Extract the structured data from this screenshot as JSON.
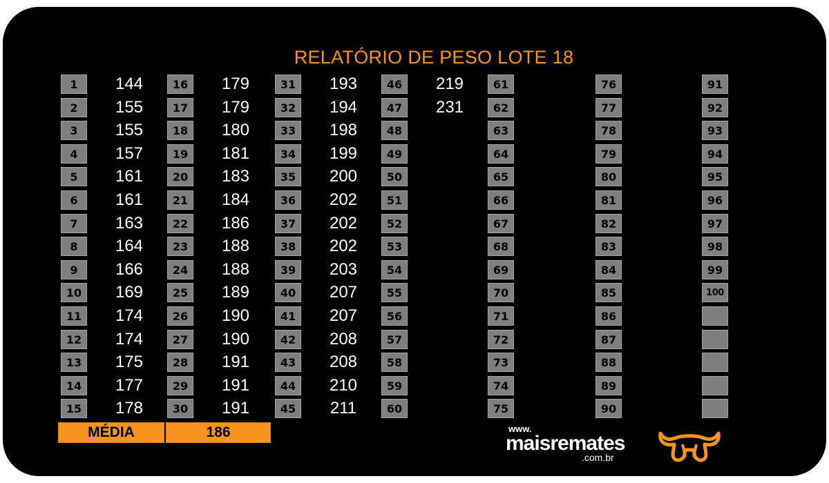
{
  "title": "RELATÓRIO DE PESO LOTE 18",
  "columns": [
    {
      "start": 1,
      "weights": [
        144,
        155,
        155,
        157,
        161,
        161,
        163,
        164,
        166,
        169,
        174,
        174,
        175,
        177,
        178
      ]
    },
    {
      "start": 16,
      "weights": [
        179,
        179,
        180,
        181,
        183,
        184,
        186,
        188,
        188,
        189,
        190,
        190,
        191,
        191,
        191
      ]
    },
    {
      "start": 31,
      "weights": [
        193,
        194,
        198,
        199,
        200,
        202,
        202,
        202,
        203,
        207,
        207,
        208,
        208,
        210,
        211
      ]
    },
    {
      "start": 46,
      "weights": [
        219,
        231
      ]
    },
    {
      "start": 61,
      "weights": []
    },
    {
      "start": 76,
      "weights": []
    },
    {
      "start": 91,
      "weights": [],
      "count": 10
    }
  ],
  "summary": {
    "label": "MÉDIA",
    "value": "186"
  },
  "logo": {
    "www": "www.",
    "name": "maisremates",
    "domain": ".com.br"
  },
  "colors": {
    "accent": "#f7941d",
    "badge": "#7f7f7f",
    "background": "#000000"
  }
}
